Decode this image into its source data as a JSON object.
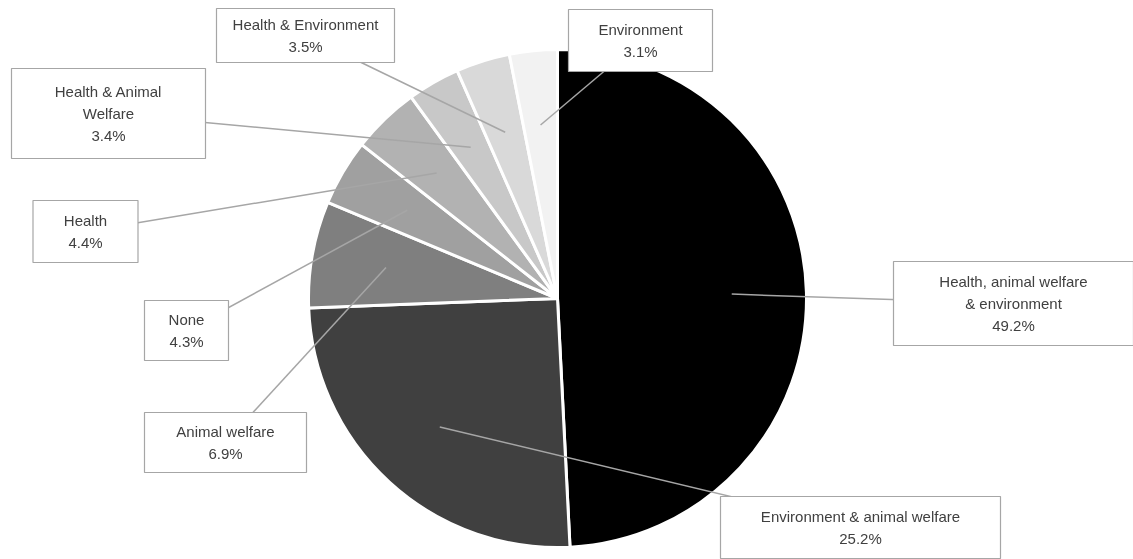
{
  "chart_data": {
    "type": "pie",
    "categories": [
      "Health, animal welfare & environment",
      "Environment & animal welfare",
      "Animal welfare",
      "None",
      "Health",
      "Health & Animal Welfare",
      "Health & Environment",
      "Environment"
    ],
    "values": [
      49.2,
      25.2,
      6.9,
      4.3,
      4.4,
      3.4,
      3.5,
      3.1
    ],
    "colors": [
      "#000000",
      "#404040",
      "#7f7f7f",
      "#a0a0a0",
      "#b2b2b2",
      "#c8c8c8",
      "#d9d9d9",
      "#f2f2f2"
    ],
    "value_labels": [
      "49.2%",
      "25.2%",
      "6.9%",
      "4.3%",
      "4.4%",
      "3.4%",
      "3.5%",
      "3.1%"
    ]
  }
}
